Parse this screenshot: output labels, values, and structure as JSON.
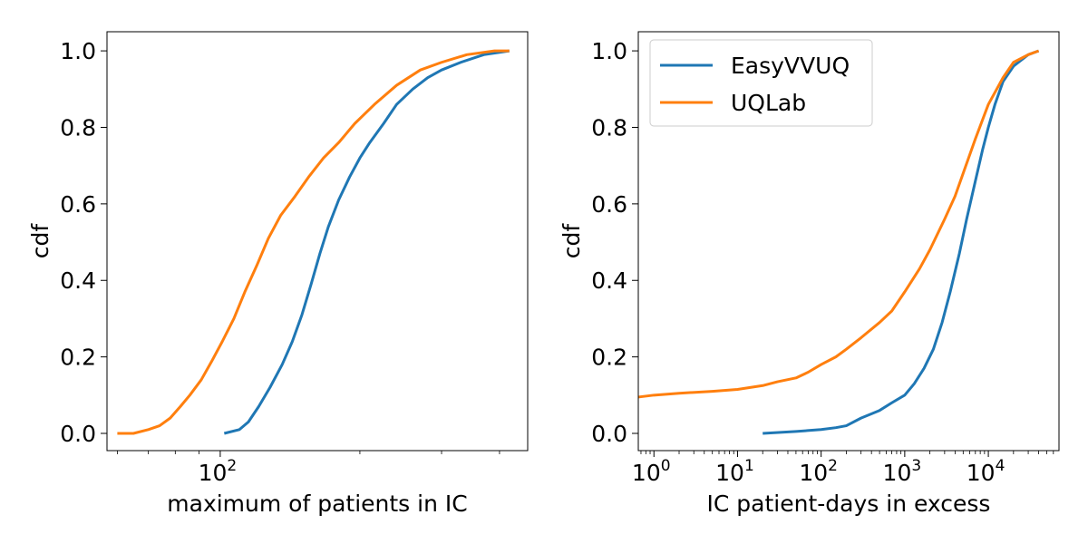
{
  "colors": {
    "EasyVVUQ": "#1f77b4",
    "UQLab": "#ff7f0e",
    "axis": "#000000"
  },
  "chart_data": [
    {
      "type": "line",
      "title": "",
      "xlabel": "maximum of patients in IC",
      "ylabel": "cdf",
      "xscale": "log",
      "xlim": [
        57,
        460
      ],
      "ylim": [
        -0.045,
        1.05
      ],
      "xtick_labels": [
        {
          "base": "10",
          "exp": "2",
          "value": 100
        }
      ],
      "ytick_labels": [
        "0.0",
        "0.2",
        "0.4",
        "0.6",
        "0.8",
        "1.0"
      ],
      "legend": null,
      "series": [
        {
          "name": "EasyVVUQ",
          "x": [
            102,
            110,
            115,
            121,
            128,
            136,
            143,
            150,
            157,
            164,
            171,
            180,
            190,
            200,
            210,
            225,
            240,
            260,
            280,
            300,
            330,
            370,
            420
          ],
          "y": [
            0.0,
            0.01,
            0.03,
            0.07,
            0.12,
            0.18,
            0.24,
            0.31,
            0.39,
            0.47,
            0.54,
            0.61,
            0.67,
            0.72,
            0.76,
            0.81,
            0.86,
            0.9,
            0.93,
            0.95,
            0.97,
            0.99,
            1.0
          ]
        },
        {
          "name": "UQLab",
          "x": [
            60,
            65,
            70,
            74,
            78,
            82,
            86,
            91,
            96,
            101,
            107,
            113,
            120,
            127,
            135,
            145,
            155,
            167,
            180,
            195,
            215,
            240,
            270,
            300,
            340,
            390,
            420
          ],
          "y": [
            0.0,
            0.0,
            0.01,
            0.02,
            0.04,
            0.07,
            0.1,
            0.14,
            0.19,
            0.24,
            0.3,
            0.37,
            0.44,
            0.51,
            0.57,
            0.62,
            0.67,
            0.72,
            0.76,
            0.81,
            0.86,
            0.91,
            0.95,
            0.97,
            0.99,
            1.0,
            1.0
          ]
        }
      ]
    },
    {
      "type": "line",
      "title": "",
      "xlabel": "IC patient-days in excess",
      "ylabel": "cdf",
      "xscale": "log",
      "xlim": [
        0.65,
        70000
      ],
      "ylim": [
        -0.045,
        1.05
      ],
      "xtick_labels": [
        {
          "base": "10",
          "exp": "0",
          "value": 1
        },
        {
          "base": "10",
          "exp": "1",
          "value": 10
        },
        {
          "base": "10",
          "exp": "2",
          "value": 100
        },
        {
          "base": "10",
          "exp": "3",
          "value": 1000
        },
        {
          "base": "10",
          "exp": "4",
          "value": 10000
        }
      ],
      "ytick_labels": [
        "0.0",
        "0.2",
        "0.4",
        "0.6",
        "0.8",
        "1.0"
      ],
      "legend": {
        "position": "top-left",
        "entries": [
          "EasyVVUQ",
          "UQLab"
        ]
      },
      "series": [
        {
          "name": "EasyVVUQ",
          "x": [
            20,
            50,
            100,
            150,
            200,
            300,
            500,
            700,
            1000,
            1300,
            1700,
            2200,
            2800,
            3500,
            4500,
            5500,
            7000,
            8500,
            10000,
            12000,
            15000,
            20000,
            30000,
            40000
          ],
          "y": [
            0.0,
            0.005,
            0.01,
            0.015,
            0.02,
            0.04,
            0.06,
            0.08,
            0.1,
            0.13,
            0.17,
            0.22,
            0.29,
            0.37,
            0.47,
            0.56,
            0.66,
            0.74,
            0.8,
            0.86,
            0.92,
            0.96,
            0.99,
            1.0
          ]
        },
        {
          "name": "UQLab",
          "x": [
            0.65,
            1,
            2,
            5,
            10,
            20,
            30,
            50,
            70,
            100,
            150,
            200,
            300,
            500,
            700,
            1000,
            1500,
            2000,
            3000,
            4000,
            5000,
            7000,
            10000,
            15000,
            20000,
            30000,
            40000
          ],
          "y": [
            0.095,
            0.1,
            0.105,
            0.11,
            0.115,
            0.125,
            0.135,
            0.145,
            0.16,
            0.18,
            0.2,
            0.22,
            0.25,
            0.29,
            0.32,
            0.37,
            0.43,
            0.48,
            0.56,
            0.62,
            0.68,
            0.77,
            0.86,
            0.93,
            0.97,
            0.99,
            1.0
          ]
        }
      ]
    }
  ]
}
